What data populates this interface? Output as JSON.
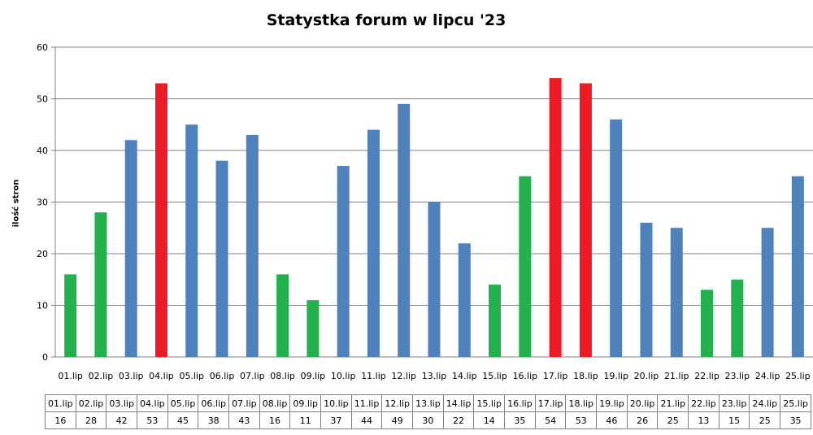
{
  "chart_data": {
    "type": "bar",
    "title": "Statystka forum w lipcu '23",
    "ylabel": "ilość stron",
    "xlabel": "",
    "ylim": [
      0,
      60
    ],
    "yticks": [
      0,
      10,
      20,
      30,
      40,
      50,
      60
    ],
    "grid": true,
    "categories": [
      "01.lip",
      "02.lip",
      "03.lip",
      "04.lip",
      "05.lip",
      "06.lip",
      "07.lip",
      "08.lip",
      "09.lip",
      "10.lip",
      "11.lip",
      "12.lip",
      "13.lip",
      "14.lip",
      "15.lip",
      "16.lip",
      "17.lip",
      "18.lip",
      "19.lip",
      "20.lip",
      "21.lip",
      "22.lip",
      "23.lip",
      "24.lip",
      "25.lip"
    ],
    "values": [
      16,
      28,
      42,
      53,
      45,
      38,
      43,
      16,
      11,
      37,
      44,
      49,
      30,
      22,
      14,
      35,
      54,
      53,
      46,
      26,
      25,
      13,
      15,
      25,
      35
    ],
    "bar_colors": [
      "#22b14c",
      "#22b14c",
      "#4f81bd",
      "#ed1c24",
      "#4f81bd",
      "#4f81bd",
      "#4f81bd",
      "#22b14c",
      "#22b14c",
      "#4f81bd",
      "#4f81bd",
      "#4f81bd",
      "#4f81bd",
      "#4f81bd",
      "#22b14c",
      "#22b14c",
      "#ed1c24",
      "#ed1c24",
      "#4f81bd",
      "#4f81bd",
      "#4f81bd",
      "#22b14c",
      "#22b14c",
      "#4f81bd",
      "#4f81bd"
    ]
  }
}
